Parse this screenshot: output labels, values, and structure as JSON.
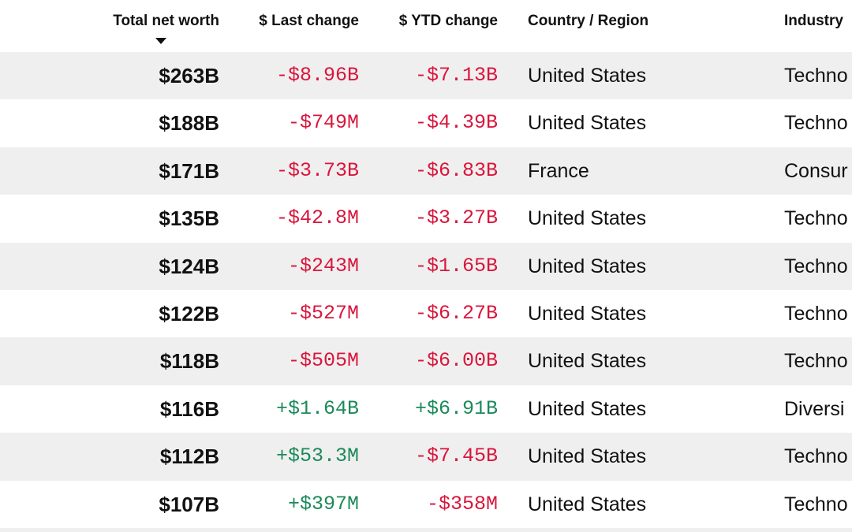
{
  "table": {
    "header": [
      "Total net worth",
      "$ Last change",
      "$ YTD change",
      "Country / Region",
      "Industry"
    ],
    "rows": [
      [
        "$263B",
        {
          "text": "-$8.96B",
          "color": "#d9163c"
        },
        {
          "text": "-$7.13B",
          "color": "#d9163c"
        },
        "United States",
        "Techno"
      ],
      [
        "$188B",
        {
          "text": "-$749M",
          "color": "#d9163c"
        },
        {
          "text": "-$4.39B",
          "color": "#d9163c"
        },
        "United States",
        "Techno"
      ],
      [
        "$171B",
        {
          "text": "-$3.73B",
          "color": "#d9163c"
        },
        {
          "text": "-$6.83B",
          "color": "#d9163c"
        },
        "France",
        "Consur"
      ],
      [
        "$135B",
        {
          "text": "-$42.8M",
          "color": "#d9163c"
        },
        {
          "text": "-$3.27B",
          "color": "#d9163c"
        },
        "United States",
        "Techno"
      ],
      [
        "$124B",
        {
          "text": "-$243M",
          "color": "#d9163c"
        },
        {
          "text": "-$1.65B",
          "color": "#d9163c"
        },
        "United States",
        "Techno"
      ],
      [
        "$122B",
        {
          "text": "-$527M",
          "color": "#d9163c"
        },
        {
          "text": "-$6.27B",
          "color": "#d9163c"
        },
        "United States",
        "Techno"
      ],
      [
        "$118B",
        {
          "text": "-$505M",
          "color": "#d9163c"
        },
        {
          "text": "-$6.00B",
          "color": "#d9163c"
        },
        "United States",
        "Techno"
      ],
      [
        "$116B",
        {
          "text": "+$1.64B",
          "color": "#1b8a5a"
        },
        {
          "text": "+$6.91B",
          "color": "#1b8a5a"
        },
        "United States",
        "Diversi"
      ],
      [
        "$112B",
        {
          "text": "+$53.3M",
          "color": "#1b8a5a"
        },
        {
          "text": "-$7.45B",
          "color": "#d9163c"
        },
        "United States",
        "Techno"
      ],
      [
        "$107B",
        {
          "text": "+$397M",
          "color": "#1b8a5a"
        },
        {
          "text": "-$358M",
          "color": "#d9163c"
        },
        "United States",
        "Techno"
      ]
    ]
  }
}
